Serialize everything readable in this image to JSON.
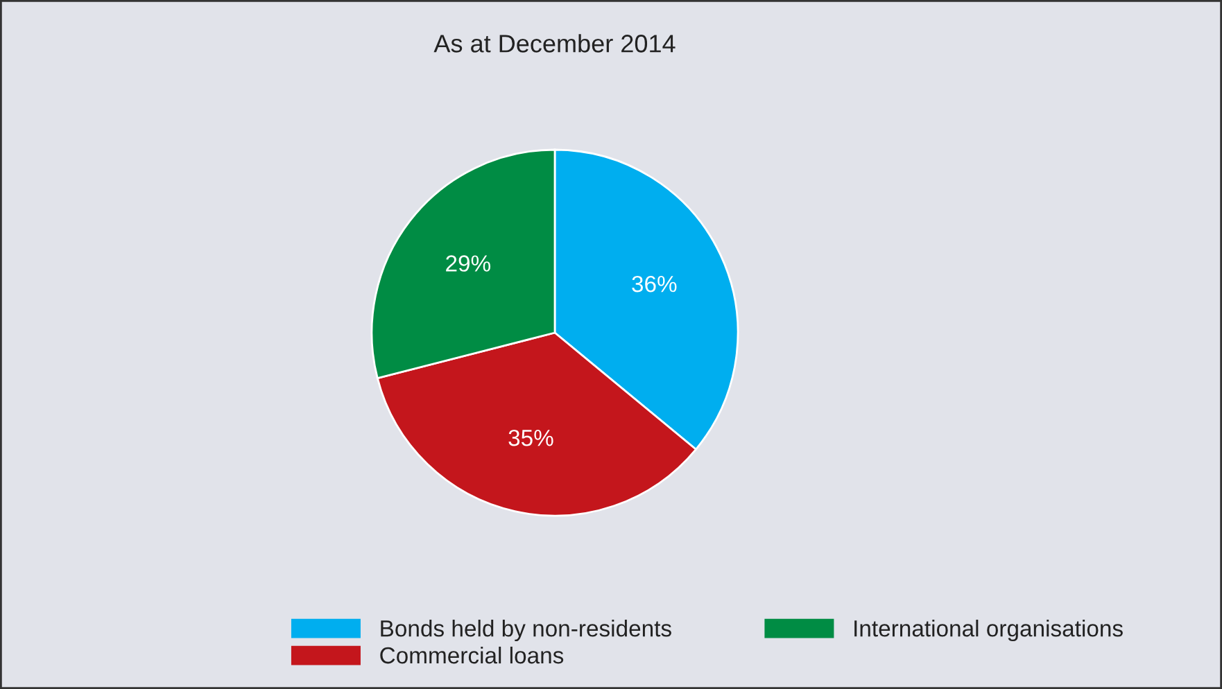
{
  "chart_data": {
    "type": "pie",
    "title": "As at December 2014",
    "categories": [
      "Bonds held by non-residents",
      "Commercial loans",
      "International organisations"
    ],
    "values": [
      36,
      35,
      29
    ],
    "colors": [
      "#00aeef",
      "#c4161c",
      "#008c44"
    ],
    "value_labels": [
      "36%",
      "35%",
      "29%"
    ],
    "legend": "bottom"
  }
}
